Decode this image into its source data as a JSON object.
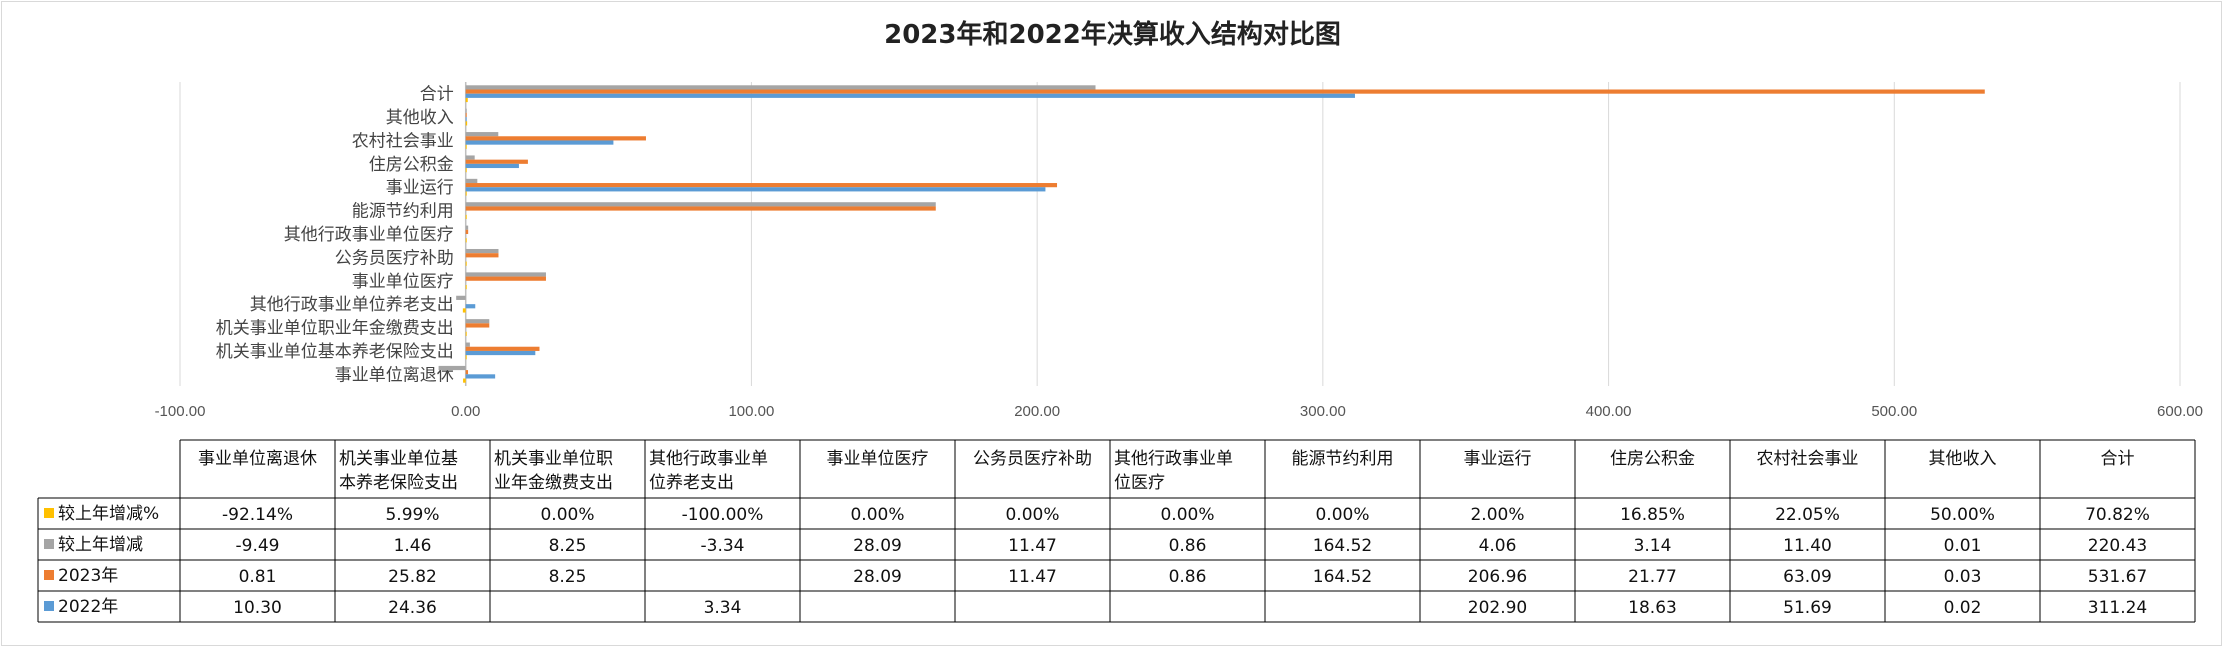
{
  "chart_data": {
    "type": "bar",
    "orientation": "horizontal",
    "title": "2023年和2022年决算收入结构对比图",
    "categories": [
      "事业单位离退休",
      "机关事业单位基本养老保险支出",
      "机关事业单位职业年金缴费支出",
      "其他行政事业单位养老支出",
      "事业单位医疗",
      "公务员医疗补助",
      "其他行政事业单位医疗",
      "能源节约利用",
      "事业运行",
      "住房公积金",
      "农村社会事业",
      "其他收入",
      "合计"
    ],
    "axis_category_labels": [
      "事业单位离退休",
      "机关事业单位基本养老保险支出",
      "机关事业单位职业年金缴费支出",
      "其他行政事业单位养老支出",
      "事业单位医疗",
      "公务员医疗补助",
      "其他行政事业单位医疗",
      "能源节约利用",
      "事业运行",
      "住房公积金",
      "农村社会事业",
      "其他收入",
      "合计"
    ],
    "table_header_lines": [
      [
        "事业单位离退休"
      ],
      [
        "机关事业单位基",
        "本养老保险支出"
      ],
      [
        "机关事业单位职",
        "业年金缴费支出"
      ],
      [
        "其他行政事业单",
        "位养老支出"
      ],
      [
        "事业单位医疗"
      ],
      [
        "公务员医疗补助"
      ],
      [
        "其他行政事业单",
        "位医疗"
      ],
      [
        "能源节约利用"
      ],
      [
        "事业运行"
      ],
      [
        "住房公积金"
      ],
      [
        "农村社会事业"
      ],
      [
        "其他收入"
      ],
      [
        "合计"
      ]
    ],
    "xlim": [
      -100,
      600
    ],
    "xticks": [
      "-100.00",
      "0.00",
      "100.00",
      "200.00",
      "300.00",
      "400.00",
      "500.00",
      "600.00"
    ],
    "grid": true,
    "series": [
      {
        "name": "较上年增减%",
        "color": "#ffc000",
        "values": [
          -0.9214,
          0.0599,
          0,
          -1,
          0,
          0,
          0,
          0,
          0.02,
          0.1685,
          0.2205,
          0.5,
          0.7082
        ],
        "labels": [
          "-92.14%",
          "5.99%",
          "0.00%",
          "-100.00%",
          "0.00%",
          "0.00%",
          "0.00%",
          "0.00%",
          "2.00%",
          "16.85%",
          "22.05%",
          "50.00%",
          "70.82%"
        ]
      },
      {
        "name": "较上年增减",
        "color": "#a5a5a5",
        "values": [
          -9.49,
          1.46,
          8.25,
          -3.34,
          28.09,
          11.47,
          0.86,
          164.52,
          4.06,
          3.14,
          11.4,
          0.01,
          220.43
        ],
        "labels": [
          "-9.49",
          "1.46",
          "8.25",
          "-3.34",
          "28.09",
          "11.47",
          "0.86",
          "164.52",
          "4.06",
          "3.14",
          "11.40",
          "0.01",
          "220.43"
        ]
      },
      {
        "name": "2023年",
        "color": "#ed7d31",
        "values": [
          0.81,
          25.82,
          8.25,
          null,
          28.09,
          11.47,
          0.86,
          164.52,
          206.96,
          21.77,
          63.09,
          0.03,
          531.67
        ],
        "labels": [
          "0.81",
          "25.82",
          "8.25",
          "",
          "28.09",
          "11.47",
          "0.86",
          "164.52",
          "206.96",
          "21.77",
          "63.09",
          "0.03",
          "531.67"
        ]
      },
      {
        "name": "2022年",
        "color": "#5b9bd5",
        "values": [
          10.3,
          24.36,
          null,
          3.34,
          null,
          null,
          null,
          null,
          202.9,
          18.63,
          51.69,
          0.02,
          311.24
        ],
        "labels": [
          "10.30",
          "24.36",
          "",
          "3.34",
          "",
          "",
          "",
          "",
          "202.90",
          "18.63",
          "51.69",
          "0.02",
          "311.24"
        ]
      }
    ],
    "legend": "data-table"
  }
}
